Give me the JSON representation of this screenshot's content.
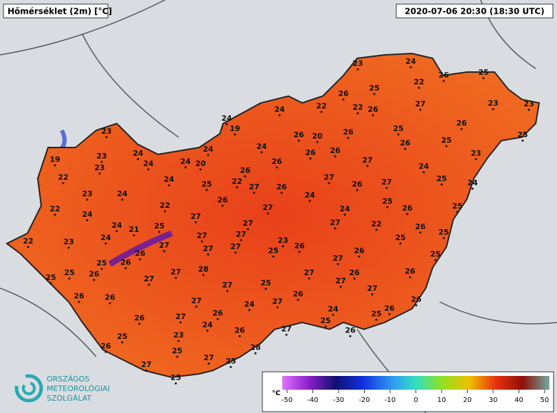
{
  "header": {
    "title": "Hőmérséklet (2m) [°C]",
    "timestamp": "2020-07-06 20:30 (18:30 UTC)"
  },
  "logo": {
    "lines": [
      "ORSZÁGOS",
      "METEOROLÓGIAI",
      "SZOLGÁLAT"
    ]
  },
  "colorbar": {
    "unit": "°C",
    "lim": [
      -50,
      50
    ],
    "ticks": [
      -50,
      -40,
      -30,
      -20,
      -10,
      0,
      10,
      20,
      30,
      40,
      50
    ]
  },
  "stations": [
    23,
    24,
    26,
    25,
    25,
    22,
    26,
    22,
    22,
    26,
    27,
    23,
    23,
    24,
    24,
    19,
    25,
    26,
    25,
    23,
    26,
    20,
    26,
    26,
    25,
    19,
    23,
    24,
    24,
    24,
    26,
    26,
    23,
    23,
    24,
    24,
    20,
    26,
    27,
    24,
    22,
    26,
    24,
    25,
    22,
    27,
    26,
    27,
    26,
    27,
    25,
    24,
    23,
    24,
    24,
    26,
    25,
    22,
    27,
    24,
    26,
    25,
    22,
    24,
    27,
    24,
    21,
    25,
    27,
    27,
    22,
    26,
    25,
    22,
    23,
    24,
    27,
    27,
    27,
    23,
    26,
    25,
    27,
    27,
    26,
    25,
    26,
    25,
    25,
    26,
    27,
    25,
    25,
    26,
    27,
    27,
    28,
    26,
    27,
    26,
    25,
    27,
    27,
    27,
    26,
    26,
    26,
    27,
    24,
    27,
    26,
    24,
    26,
    25,
    26,
    27,
    26,
    24,
    25,
    26,
    27,
    26,
    23,
    25,
    26,
    25,
    28,
    27,
    27,
    25,
    25
  ]
}
